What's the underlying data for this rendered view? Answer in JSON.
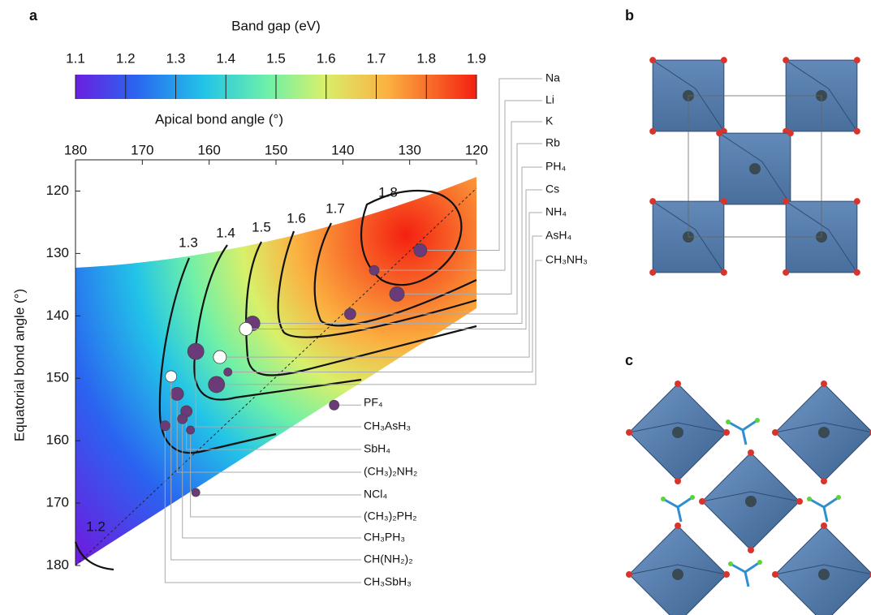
{
  "panel_labels": [
    "a",
    "b",
    "c"
  ],
  "chart_data": {
    "type": "contour",
    "colorbar": {
      "title": "Band gap (eV)",
      "lim": [
        1.1,
        1.9
      ],
      "ticks": [
        1.1,
        1.2,
        1.3,
        1.4,
        1.5,
        1.6,
        1.7,
        1.8,
        1.9
      ]
    },
    "xlabel": "Apical bond angle (°)",
    "ylabel": "Equatorial bond angle (°)",
    "xlim": [
      180,
      120
    ],
    "xticks": [
      180,
      170,
      160,
      150,
      140,
      130,
      120
    ],
    "ylim": [
      180,
      115
    ],
    "yticks": [
      120,
      130,
      140,
      150,
      160,
      170,
      180
    ],
    "contour_levels": [
      1.2,
      1.3,
      1.4,
      1.5,
      1.6,
      1.7,
      1.8
    ],
    "points": [
      {
        "name": "Na",
        "x": 128.4,
        "y": 129.5,
        "color": "#6b3a78"
      },
      {
        "name": "Li",
        "x": 135.3,
        "y": 132.7,
        "color": "#6b3a78"
      },
      {
        "name": "K",
        "x": 131.9,
        "y": 136.5,
        "color": "#6b3a78"
      },
      {
        "name": "Rb",
        "x": 138.9,
        "y": 139.7,
        "color": "#6b3a78"
      },
      {
        "name": "PH₄",
        "x": 153.5,
        "y": 141.2,
        "color": "#6b3a78"
      },
      {
        "name": "Cs",
        "x": 154.5,
        "y": 142.1,
        "color": "#ffffff"
      },
      {
        "name": "NH₄",
        "x": 158.4,
        "y": 146.6,
        "color": "#ffffff"
      },
      {
        "name": "AsH₄",
        "x": 157.2,
        "y": 149.0,
        "color": "#6b3a78"
      },
      {
        "name": "CH₃NH₃",
        "x": 158.9,
        "y": 151.0,
        "color": "#6b3a78"
      },
      {
        "name": "PF₄",
        "x": 141.3,
        "y": 154.3,
        "color": "#6b3a78"
      },
      {
        "name": "CH₃AsH₃",
        "x": 162.0,
        "y": 145.7,
        "color": "#6b3a78"
      },
      {
        "name": "SbH₄",
        "x": 163.4,
        "y": 155.3,
        "color": "#6b3a78"
      },
      {
        "name": "(CH₃)₂NH₂",
        "x": 164.8,
        "y": 152.5,
        "color": "#6b3a78"
      },
      {
        "name": "NCl₄",
        "x": 162.0,
        "y": 168.3,
        "color": "#6b3a78"
      },
      {
        "name": "(CH₃)₂PH₂",
        "x": 162.8,
        "y": 158.3,
        "color": "#6b3a78"
      },
      {
        "name": "CH₃PH₃",
        "x": 164.0,
        "y": 156.5,
        "color": "#6b3a78"
      },
      {
        "name": "CH(NH₂)₂",
        "x": 165.7,
        "y": 149.7,
        "color": "#ffffff"
      },
      {
        "name": "CH₃SbH₃",
        "x": 166.6,
        "y": 157.6,
        "color": "#6b3a78"
      }
    ]
  }
}
